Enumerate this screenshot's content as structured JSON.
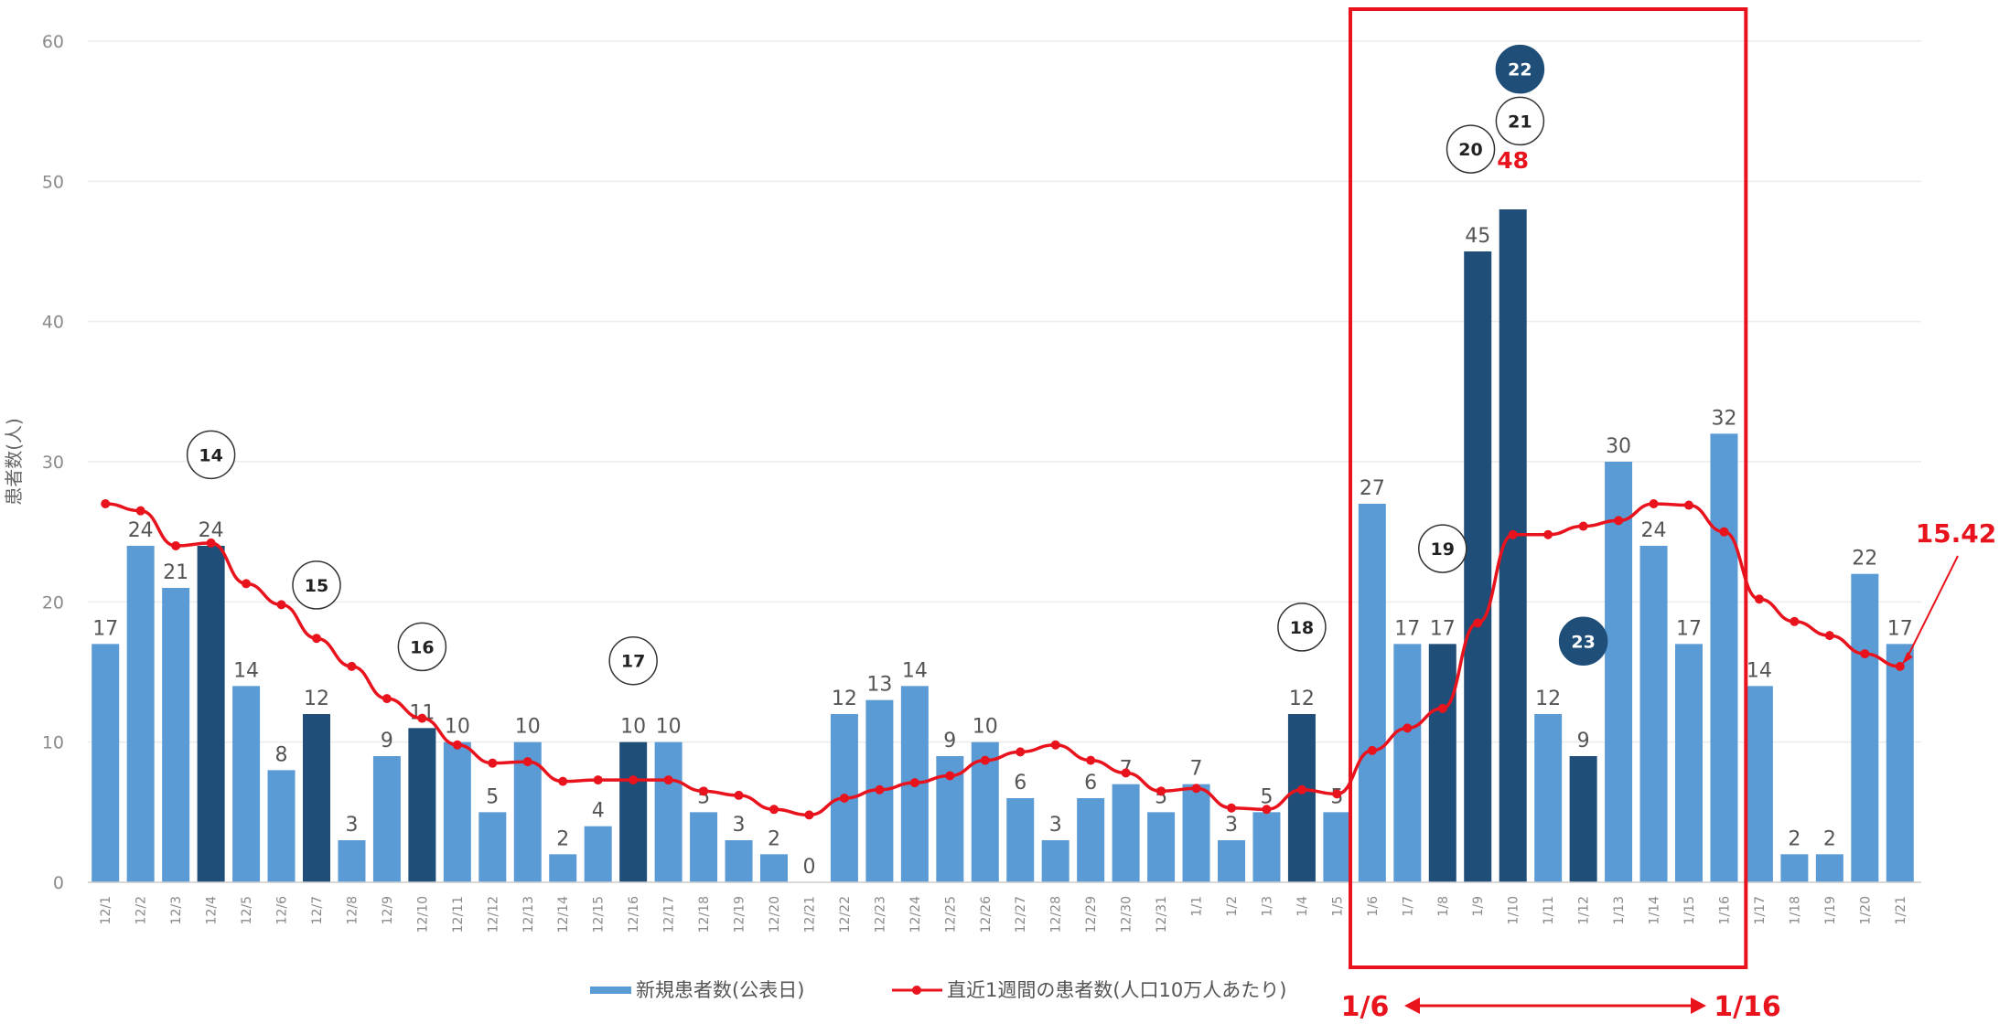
{
  "chart_data": {
    "type": "bar",
    "ylabel": "患者数(人)",
    "ylim": [
      0,
      60
    ],
    "yticks": [
      "0",
      "10",
      "20",
      "30",
      "40",
      "50",
      "60"
    ],
    "grid": true,
    "legend_position": "bottom",
    "categories": [
      "12/1",
      "12/2",
      "12/3",
      "12/4",
      "12/5",
      "12/6",
      "12/7",
      "12/8",
      "12/9",
      "12/10",
      "12/11",
      "12/12",
      "12/13",
      "12/14",
      "12/15",
      "12/16",
      "12/17",
      "12/18",
      "12/19",
      "12/20",
      "12/21",
      "12/22",
      "12/23",
      "12/24",
      "12/25",
      "12/26",
      "12/27",
      "12/28",
      "12/29",
      "12/30",
      "12/31",
      "1/1",
      "1/2",
      "1/3",
      "1/4",
      "1/5",
      "1/6",
      "1/7",
      "1/8",
      "1/9",
      "1/10",
      "1/11",
      "1/12",
      "1/13",
      "1/14",
      "1/15",
      "1/16",
      "1/17",
      "1/18",
      "1/19",
      "1/20",
      "1/21"
    ],
    "series": [
      {
        "name": "新規患者数(公表日)",
        "kind": "bar",
        "color": "#5b9bd5",
        "highlight_color": "#1f4e79",
        "values": [
          17,
          24,
          21,
          24,
          14,
          8,
          12,
          3,
          9,
          11,
          10,
          5,
          10,
          2,
          4,
          10,
          10,
          5,
          3,
          2,
          0,
          12,
          13,
          14,
          9,
          10,
          6,
          3,
          6,
          7,
          5,
          7,
          3,
          5,
          12,
          5,
          27,
          17,
          17,
          45,
          48,
          12,
          9,
          30,
          24,
          17,
          32,
          14,
          2,
          2,
          22,
          17
        ],
        "highlighted": [
          3,
          6,
          9,
          15,
          34,
          38,
          39,
          40,
          42
        ]
      },
      {
        "name": "直近1週間の患者数(人口10万人あたり)",
        "kind": "line",
        "color": "#e8131d",
        "values": [
          27.0,
          26.5,
          24.0,
          24.2,
          21.3,
          19.8,
          17.4,
          15.4,
          13.1,
          11.7,
          9.8,
          8.5,
          8.6,
          7.2,
          7.3,
          7.3,
          7.3,
          6.5,
          6.2,
          5.2,
          4.8,
          6.0,
          6.6,
          7.1,
          7.6,
          8.7,
          9.3,
          9.8,
          8.7,
          7.8,
          6.5,
          6.7,
          5.3,
          5.2,
          6.6,
          6.3,
          9.4,
          11.0,
          12.4,
          18.5,
          24.8,
          24.8,
          25.4,
          25.8,
          27.0,
          26.9,
          25.0,
          20.2,
          18.6,
          17.6,
          16.3,
          15.4
        ]
      }
    ],
    "circled_labels": [
      {
        "text": "14",
        "index": 3,
        "y": 30.5,
        "filled": false
      },
      {
        "text": "15",
        "index": 6,
        "y": 21.2,
        "filled": false
      },
      {
        "text": "16",
        "index": 9,
        "y": 16.8,
        "filled": false
      },
      {
        "text": "17",
        "index": 15,
        "y": 15.8,
        "filled": false
      },
      {
        "text": "18",
        "index": 34,
        "y": 18.2,
        "filled": false
      },
      {
        "text": "19",
        "index": 38,
        "y": 23.8,
        "filled": false
      },
      {
        "text": "20",
        "index": 38.8,
        "y": 52.3,
        "filled": false
      },
      {
        "text": "21",
        "index": 40.2,
        "y": 54.3,
        "filled": false
      },
      {
        "text": "22",
        "index": 40.2,
        "y": 58.0,
        "filled": true
      },
      {
        "text": "23",
        "index": 42,
        "y": 17.2,
        "filled": true
      }
    ],
    "annotations": {
      "highlight_value": "48",
      "last_value": "15.42",
      "range_start": "1/6",
      "range_end": "1/16"
    }
  }
}
